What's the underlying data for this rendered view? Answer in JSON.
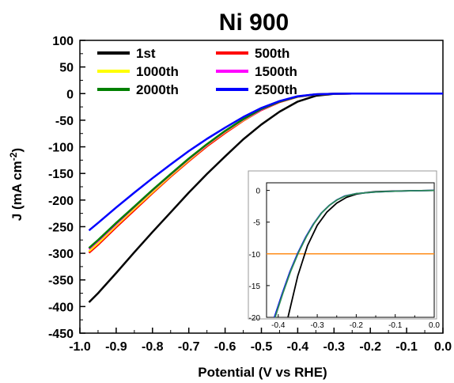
{
  "chart_data": {
    "type": "line",
    "title": "Ni 900",
    "xlabel": "Potential (V vs RHE)",
    "ylabel_main": "J (mA cm",
    "ylabel_sup": "-2",
    "ylabel_end": ")",
    "xlim": [
      -1.0,
      0.0
    ],
    "ylim": [
      -450,
      100
    ],
    "x_ticks": [
      -1.0,
      -0.9,
      -0.8,
      -0.7,
      -0.6,
      -0.5,
      -0.4,
      -0.3,
      -0.2,
      -0.1,
      0.0
    ],
    "x_tick_labels": [
      "-1.0",
      "-0.9",
      "-0.8",
      "-0.7",
      "-0.6",
      "-0.5",
      "-0.4",
      "-0.3",
      "-0.2",
      "-0.1",
      "0.0"
    ],
    "y_ticks": [
      100,
      50,
      0,
      -50,
      -100,
      -150,
      -200,
      -250,
      -300,
      -350,
      -400,
      -450
    ],
    "y_tick_labels": [
      "100",
      "50",
      "0",
      "-50",
      "-100",
      "-150",
      "-200",
      "-250",
      "-300",
      "-350",
      "-400",
      "-450"
    ],
    "grid": false,
    "legend_placement": "top-left",
    "series": [
      {
        "name": "1st",
        "color": "#000000",
        "x": [
          -0.975,
          -0.95,
          -0.9,
          -0.85,
          -0.8,
          -0.75,
          -0.7,
          -0.65,
          -0.6,
          -0.55,
          -0.5,
          -0.45,
          -0.4,
          -0.35,
          -0.3,
          -0.25,
          -0.2,
          -0.15,
          -0.1,
          0.0
        ],
        "y": [
          -392,
          -375,
          -337,
          -298,
          -260,
          -223,
          -186,
          -151,
          -118,
          -86,
          -58,
          -34,
          -15,
          -4,
          -0.5,
          0,
          0,
          0,
          0,
          0
        ]
      },
      {
        "name": "500th",
        "color": "#ff0000",
        "x": [
          -0.975,
          -0.95,
          -0.9,
          -0.85,
          -0.8,
          -0.75,
          -0.7,
          -0.65,
          -0.6,
          -0.55,
          -0.5,
          -0.45,
          -0.4,
          -0.35,
          -0.3,
          -0.25,
          -0.2,
          -0.15,
          -0.1,
          0.0
        ],
        "y": [
          -299,
          -284,
          -251,
          -219,
          -187,
          -156,
          -127,
          -99,
          -74,
          -51,
          -31,
          -16,
          -6,
          -1.5,
          -0.3,
          0,
          0,
          0,
          0,
          0
        ]
      },
      {
        "name": "1000th",
        "color": "#ffff00",
        "x": [
          -0.975,
          -0.95,
          -0.9,
          -0.85,
          -0.8,
          -0.75,
          -0.7,
          -0.65,
          -0.6,
          -0.55,
          -0.5,
          -0.45,
          -0.4,
          -0.35,
          -0.3,
          -0.25,
          -0.2,
          -0.15,
          -0.1,
          0.0
        ],
        "y": [
          -296,
          -281,
          -248,
          -216,
          -185,
          -154,
          -125,
          -97,
          -72,
          -50,
          -30,
          -15,
          -5.5,
          -1.4,
          -0.3,
          0,
          0,
          0,
          0,
          0
        ]
      },
      {
        "name": "1500th",
        "color": "#ff00ff",
        "x": [
          -0.975,
          -0.95,
          -0.9,
          -0.85,
          -0.8,
          -0.75,
          -0.7,
          -0.65,
          -0.6,
          -0.55,
          -0.5,
          -0.45,
          -0.4,
          -0.35,
          -0.3,
          -0.25,
          -0.2,
          -0.15,
          -0.1,
          0.0
        ],
        "y": [
          -292,
          -277,
          -245,
          -213,
          -182,
          -152,
          -123,
          -96,
          -71,
          -49,
          -30,
          -15,
          -5.5,
          -1.4,
          -0.3,
          0,
          0,
          0,
          0,
          0
        ]
      },
      {
        "name": "2000th",
        "color": "#008000",
        "x": [
          -0.975,
          -0.95,
          -0.9,
          -0.85,
          -0.8,
          -0.75,
          -0.7,
          -0.65,
          -0.6,
          -0.55,
          -0.5,
          -0.45,
          -0.4,
          -0.35,
          -0.3,
          -0.25,
          -0.2,
          -0.15,
          -0.1,
          0.0
        ],
        "y": [
          -290,
          -275,
          -243,
          -212,
          -181,
          -151,
          -122,
          -95,
          -70,
          -48,
          -29,
          -15,
          -5.5,
          -1.4,
          -0.3,
          0,
          0,
          0,
          0,
          0
        ]
      },
      {
        "name": "2500th",
        "color": "#0000ff",
        "x": [
          -0.975,
          -0.95,
          -0.9,
          -0.85,
          -0.8,
          -0.75,
          -0.7,
          -0.65,
          -0.6,
          -0.55,
          -0.5,
          -0.45,
          -0.4,
          -0.35,
          -0.3,
          -0.25,
          -0.2,
          -0.15,
          -0.1,
          0.0
        ],
        "y": [
          -257,
          -243,
          -214,
          -186,
          -159,
          -133,
          -108,
          -85,
          -64,
          -44,
          -27,
          -14,
          -5,
          -1.3,
          -0.3,
          0,
          0,
          0,
          0,
          0
        ]
      }
    ],
    "inset": {
      "xlim": [
        -0.43,
        0.0
      ],
      "ylim": [
        -20,
        1.2
      ],
      "x_ticks": [
        -0.4,
        -0.3,
        -0.2,
        -0.1,
        0.0
      ],
      "x_tick_labels": [
        "-0.4",
        "-0.3",
        "-0.2",
        "-0.1",
        "0.0"
      ],
      "y_ticks": [
        0,
        -5,
        -10,
        -15,
        -20
      ],
      "y_tick_labels": [
        "0",
        "-5",
        "-10",
        "-15",
        "-20"
      ],
      "reference_line_y": -10,
      "reference_line_color": "#ff8c1a",
      "series": [
        {
          "name": "1st",
          "color": "#000000",
          "x": [
            -0.375,
            -0.35,
            -0.325,
            -0.3,
            -0.275,
            -0.25,
            -0.225,
            -0.2,
            -0.175,
            -0.15,
            -0.1,
            -0.05,
            0.0
          ],
          "y": [
            -20,
            -13.5,
            -8.7,
            -5.5,
            -3.4,
            -2.0,
            -1.1,
            -0.6,
            -0.35,
            -0.2,
            -0.1,
            -0.05,
            0
          ]
        },
        {
          "name": "2500th",
          "color": "#0000ff",
          "x": [
            -0.41,
            -0.39,
            -0.37,
            -0.35,
            -0.33,
            -0.31,
            -0.29,
            -0.27,
            -0.25,
            -0.23,
            -0.2,
            -0.15,
            -0.1,
            -0.05,
            0.0
          ],
          "y": [
            -20,
            -16.3,
            -12.8,
            -9.9,
            -7.4,
            -5.3,
            -3.6,
            -2.4,
            -1.5,
            -0.9,
            -0.5,
            -0.25,
            -0.12,
            -0.05,
            0
          ]
        },
        {
          "name": "green-overlay",
          "color": "#2e8b57",
          "x": [
            -0.408,
            -0.388,
            -0.368,
            -0.348,
            -0.328,
            -0.308,
            -0.288,
            -0.268,
            -0.248,
            -0.228,
            -0.2,
            -0.15,
            -0.1,
            -0.05,
            0.0
          ],
          "y": [
            -20,
            -16.2,
            -12.7,
            -9.8,
            -7.3,
            -5.2,
            -3.5,
            -2.3,
            -1.45,
            -0.88,
            -0.5,
            -0.25,
            -0.12,
            -0.05,
            0
          ]
        }
      ]
    }
  }
}
